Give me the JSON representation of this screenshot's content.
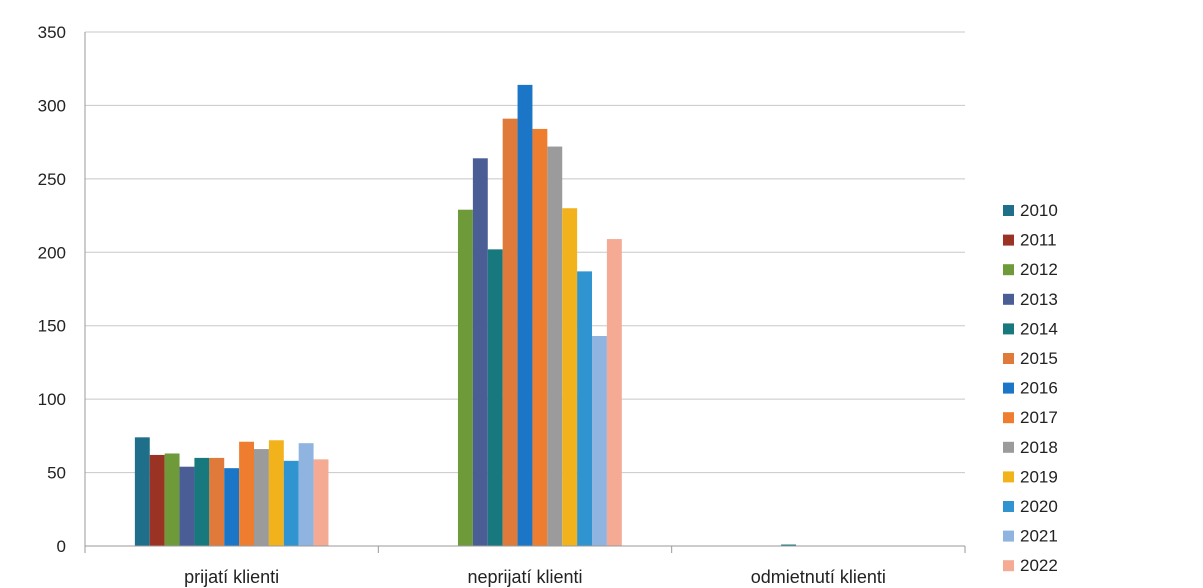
{
  "chart_data": {
    "type": "bar",
    "title": "",
    "xlabel": "",
    "ylabel": "",
    "ylim": [
      0,
      350
    ],
    "yticks": [
      0,
      50,
      100,
      150,
      200,
      250,
      300,
      350
    ],
    "grid": true,
    "legend_position": "right",
    "categories": [
      "prijatí klienti",
      "neprijatí klienti",
      "odmietnutí klienti"
    ],
    "series": [
      {
        "name": "2010",
        "color": "#1f6f8b",
        "values": [
          74,
          0,
          0
        ]
      },
      {
        "name": "2011",
        "color": "#9a3324",
        "values": [
          62,
          0,
          0
        ]
      },
      {
        "name": "2012",
        "color": "#6e9a3a",
        "values": [
          63,
          229,
          0
        ]
      },
      {
        "name": "2013",
        "color": "#4a5d95",
        "values": [
          54,
          264,
          0
        ]
      },
      {
        "name": "2014",
        "color": "#17787e",
        "values": [
          60,
          202,
          1
        ]
      },
      {
        "name": "2015",
        "color": "#e07a3a",
        "values": [
          60,
          291,
          0
        ]
      },
      {
        "name": "2016",
        "color": "#1b76c8",
        "values": [
          53,
          314,
          0
        ]
      },
      {
        "name": "2017",
        "color": "#ef7d2f",
        "values": [
          71,
          284,
          0
        ]
      },
      {
        "name": "2018",
        "color": "#9b9b9b",
        "values": [
          66,
          272,
          0
        ]
      },
      {
        "name": "2019",
        "color": "#f2b21c",
        "values": [
          72,
          230,
          0
        ]
      },
      {
        "name": "2020",
        "color": "#2f94cf",
        "values": [
          58,
          187,
          0
        ]
      },
      {
        "name": "2021",
        "color": "#8fb4e0",
        "values": [
          70,
          143,
          0
        ]
      },
      {
        "name": "2022",
        "color": "#f4aa93",
        "values": [
          59,
          209,
          0
        ]
      }
    ]
  }
}
